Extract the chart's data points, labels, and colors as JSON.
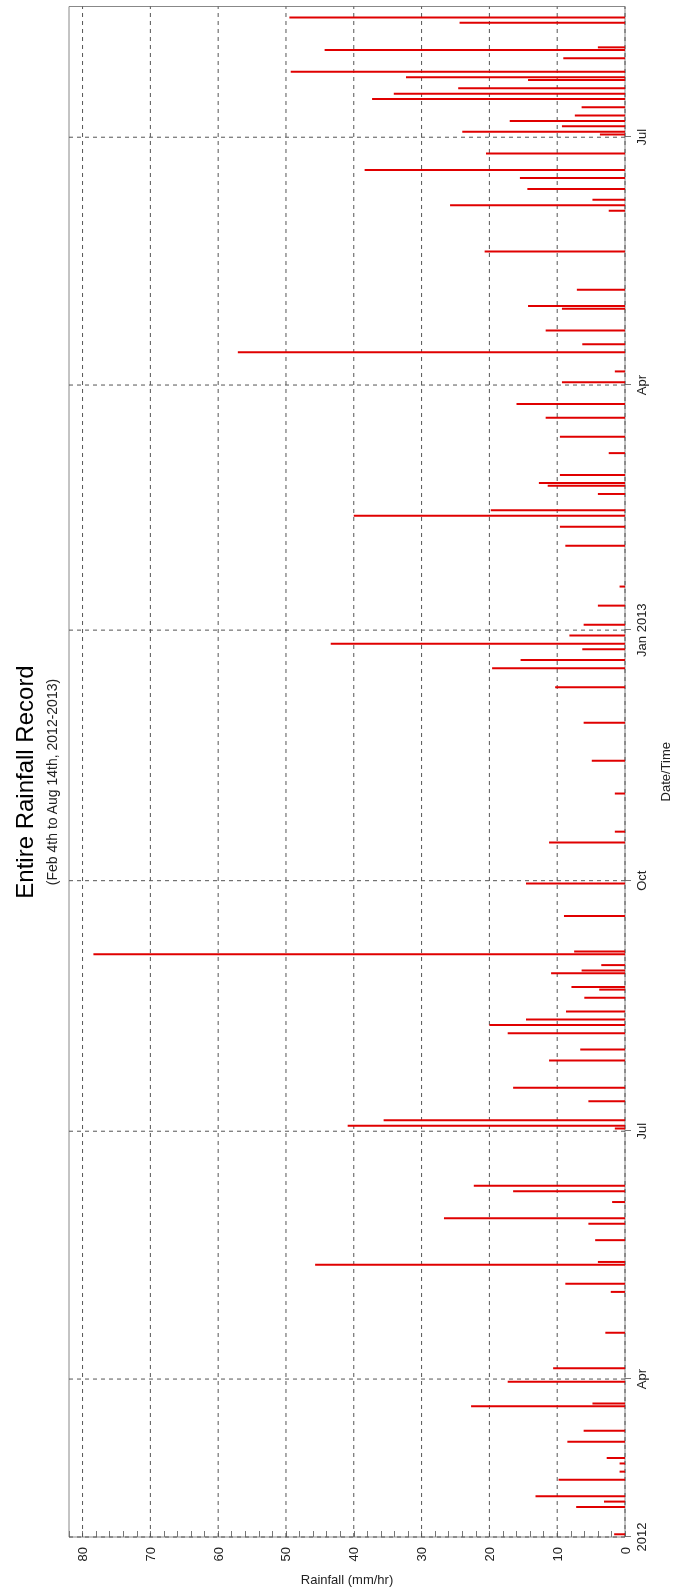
{
  "chart_data": {
    "type": "bar",
    "orientation": "horizontal",
    "title": "Entire Rainfall Record",
    "subtitle": "(Feb 4th to Aug 14th, 2012-2013)",
    "xlabel": "Rainfall (mm/hr)",
    "ylabel": "Date/Time",
    "color": "#e00000",
    "grid": true,
    "x": [
      "2012-02-04",
      "2012-02-14",
      "2012-02-16",
      "2012-02-18",
      "2012-02-24",
      "2012-02-27",
      "2012-03-01",
      "2012-03-03",
      "2012-03-09",
      "2012-03-13",
      "2012-03-22",
      "2012-03-23",
      "2012-03-31",
      "2012-04-05",
      "2012-04-18",
      "2012-05-03",
      "2012-05-06",
      "2012-05-13",
      "2012-05-14",
      "2012-05-22",
      "2012-05-28",
      "2012-05-30",
      "2012-06-05",
      "2012-06-09",
      "2012-06-11",
      "2012-07-02",
      "2012-07-03",
      "2012-07-05",
      "2012-07-12",
      "2012-07-17",
      "2012-07-27",
      "2012-07-31",
      "2012-08-06",
      "2012-08-09",
      "2012-08-11",
      "2012-08-14",
      "2012-08-19",
      "2012-08-22",
      "2012-08-23",
      "2012-08-28",
      "2012-08-29",
      "2012-08-31",
      "2012-09-04",
      "2012-09-05",
      "2012-09-18",
      "2012-09-30",
      "2012-10-15",
      "2012-10-19",
      "2012-11-02",
      "2012-11-14",
      "2012-11-28",
      "2012-12-11",
      "2012-12-18",
      "2012-12-21",
      "2012-12-25",
      "2012-12-27",
      "2012-12-30",
      "2013-01-03",
      "2013-01-10",
      "2013-01-17",
      "2013-02-01",
      "2013-02-08",
      "2013-02-12",
      "2013-02-14",
      "2013-02-20",
      "2013-02-23",
      "2013-02-24",
      "2013-02-27",
      "2013-03-07",
      "2013-03-13",
      "2013-03-20",
      "2013-03-25",
      "2013-04-02",
      "2013-04-06",
      "2013-04-13",
      "2013-04-16",
      "2013-04-21",
      "2013-04-29",
      "2013-04-30",
      "2013-05-06",
      "2013-05-20",
      "2013-06-04",
      "2013-06-06",
      "2013-06-08",
      "2013-06-12",
      "2013-06-16",
      "2013-06-19",
      "2013-06-25",
      "2013-07-02",
      "2013-07-03",
      "2013-07-05",
      "2013-07-07",
      "2013-07-09",
      "2013-07-12",
      "2013-07-15",
      "2013-07-17",
      "2013-07-19",
      "2013-07-22",
      "2013-07-23",
      "2013-07-25",
      "2013-07-30",
      "2013-08-02",
      "2013-08-03",
      "2013-08-12",
      "2013-08-14"
    ],
    "values": [
      1.6,
      7.2,
      3.1,
      13.2,
      9.8,
      0.8,
      0.8,
      2.7,
      8.5,
      6.1,
      22.7,
      4.8,
      17.3,
      10.6,
      2.9,
      2.1,
      8.8,
      45.7,
      4,
      4.4,
      5.4,
      26.7,
      1.9,
      16.5,
      22.3,
      1.5,
      40.9,
      35.6,
      5.4,
      16.5,
      11.2,
      6.6,
      17.3,
      20,
      14.6,
      8.7,
      6,
      3.8,
      7.9,
      10.9,
      6.4,
      3.5,
      78.4,
      7.5,
      9,
      14.6,
      11.2,
      1.5,
      1.5,
      4.9,
      6.1,
      10.3,
      19.6,
      15.4,
      6.3,
      43.4,
      8.2,
      6.1,
      4,
      0.8,
      8.8,
      9.6,
      40,
      19.8,
      4,
      11.4,
      12.7,
      9.6,
      2.4,
      9.6,
      11.7,
      16,
      9.3,
      1.5,
      57.1,
      6.3,
      11.7,
      9.3,
      14.3,
      7.1,
      20.7,
      2.4,
      25.8,
      4.8,
      14.4,
      15.5,
      38.4,
      20.5,
      3.7,
      24,
      9.3,
      17,
      7.4,
      6.4,
      37.3,
      34.1,
      24.6,
      14.3,
      32.3,
      49.3,
      9.1,
      44.3,
      4,
      24.4,
      49.5
    ],
    "xlim": [
      82,
      0
    ],
    "xticks": [
      0,
      10,
      20,
      30,
      40,
      50,
      60,
      70,
      80
    ],
    "ylim": [
      "2012-02-03",
      "2013-08-18"
    ],
    "yticks": [
      {
        "value": "2012-02-03",
        "label": "2012"
      },
      {
        "value": "2012-04-01",
        "label": "Apr"
      },
      {
        "value": "2012-07-01",
        "label": "Jul"
      },
      {
        "value": "2012-10-01",
        "label": "Oct"
      },
      {
        "value": "2013-01-01",
        "label": "Jan 2013"
      },
      {
        "value": "2013-04-01",
        "label": "Apr"
      },
      {
        "value": "2013-07-01",
        "label": "Jul"
      }
    ]
  }
}
